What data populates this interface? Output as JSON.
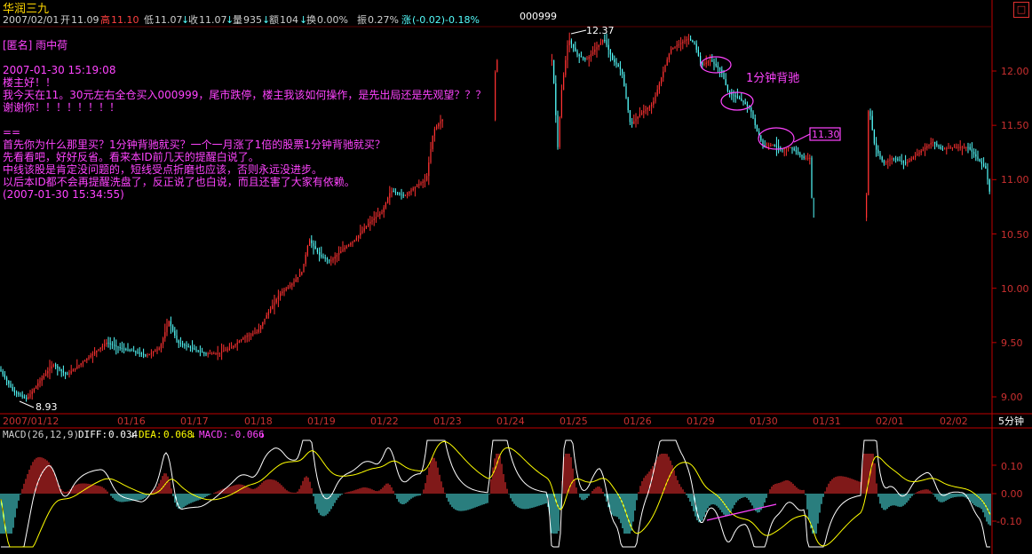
{
  "header": {
    "stock_name": "华润三九",
    "date": "2007/02/01",
    "open_label": "开",
    "open": "11.09",
    "high_label": "高",
    "high": "11.10",
    "low_label": "低",
    "low": "11.07",
    "close_label": "收",
    "close": "11.07",
    "volume_label": "量",
    "volume": "935",
    "amount_label": "额",
    "amount": "104",
    "turnover_label": "换",
    "turnover": "0.00%",
    "amplitude_label": "振",
    "amplitude": "0.27%",
    "change_label": "涨",
    "change": "(-0.02)-0.18%",
    "code": "000999"
  },
  "post": {
    "author": "[匿名] 雨中荷",
    "time": "2007-01-30 15:19:08",
    "lines": [
      "楼主好！！",
      "我今天在11。30元左右全仓买入000999，尾市跌停，楼主我该如何操作，是先出局还是先观望？？？",
      "谢谢你！！！！！！！！"
    ],
    "separator": "==",
    "reply_lines": [
      "首先你为什么那里买？1分钟背驰就买？一个一月涨了1倍的股票1分钟背驰就买？",
      "先看看吧，好好反省。看来本ID前几天的提醒白说了。",
      "中线该股是肯定没问题的，短线受点折磨也应该，否则永远没进步。",
      "以后本ID都不会再提醒洗盘了，反正说了也白说，而且还害了大家有依赖。"
    ],
    "reply_time": "(2007-01-30 15:34:55)"
  },
  "annotations": {
    "high_marker": "12.37",
    "low_marker": "8.93",
    "divergence_label": "1分钟背驰",
    "price_box": "11.30"
  },
  "x_axis": {
    "labels": [
      "2007/01/12",
      "01/16",
      "01/17",
      "01/18",
      "01/19",
      "01/22",
      "01/23",
      "01/24",
      "01/25",
      "01/26",
      "01/29",
      "01/30",
      "01/31",
      "02/01",
      "02/02"
    ],
    "period": "5分钟"
  },
  "price_axis": {
    "ticks": [
      "12.00",
      "11.50",
      "11.00",
      "10.50",
      "10.00",
      "9.50",
      "9.00"
    ]
  },
  "macd": {
    "title": "MACD(26,12,9)",
    "diff_label": "DIFF:",
    "diff": "0.034",
    "dea_label": "DEA:",
    "dea": "0.068",
    "macd_label": "MACD:",
    "macd": "-0.066",
    "ticks": [
      "0.10",
      "0.00",
      "-0.10"
    ]
  },
  "colors": {
    "up": "#ff3232",
    "down": "#54fcfc",
    "magenta": "#ff44ff",
    "yellow": "#ffff00",
    "white": "#ffffff",
    "grid": "#7a0000",
    "axis": "#c00000"
  },
  "window": {
    "close_glyph": "□"
  }
}
